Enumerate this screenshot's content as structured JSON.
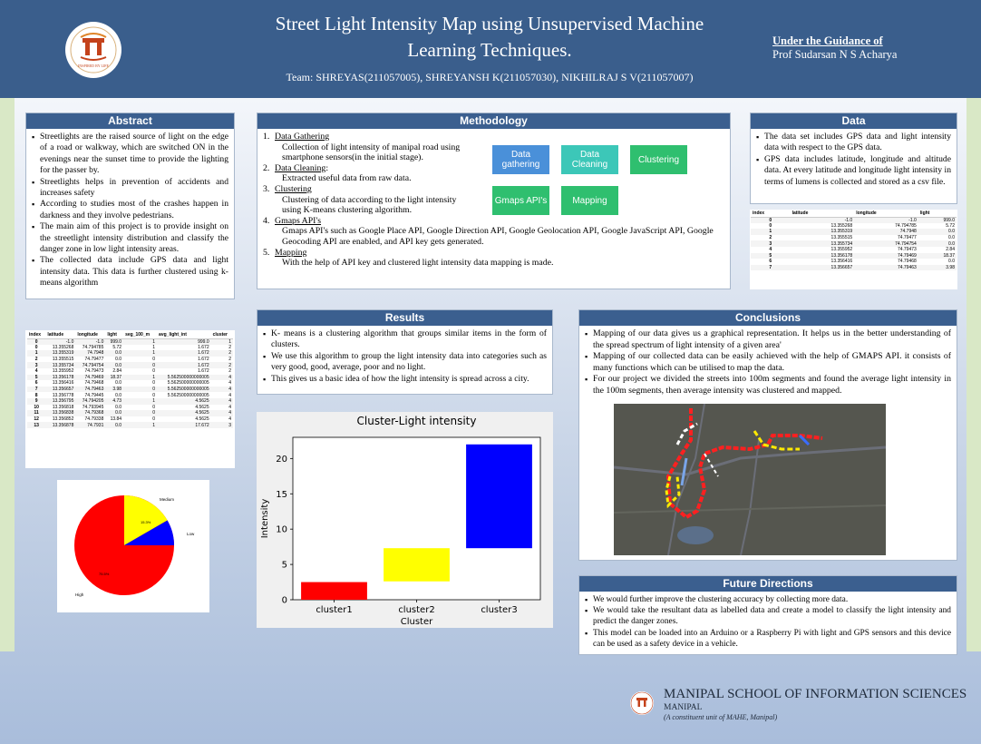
{
  "header": {
    "title_line1": "Street Light Intensity Map using Unsupervised Machine",
    "title_line2": "Learning Techniques.",
    "team": "Team: SHREYAS(211057005), SHREYANSH  K(211057030), NIKHILRAJ S V(211057007)",
    "guidance_label": "Under the Guidance of",
    "guidance_name": "Prof Sudarsan N S Acharya",
    "logo_text": "INSPIRED BY LIFE"
  },
  "abstract": {
    "heading": "Abstract",
    "items": [
      "Streetlights are the raised source of light on the edge of a road or walkway, which are switched ON in the evenings near the sunset time to provide the lighting for the passer by.",
      "Streetlights helps in prevention of accidents and increases safety",
      "According to studies most of the crashes happen in darkness and they involve pedestrians.",
      "The main aim of this project is to provide insight on the streetlight intensity distribution and classify the danger zone in low light intensity areas.",
      "The collected data include GPS data and light intensity data. This data is further clustered using k-means algorithm"
    ]
  },
  "methodology": {
    "heading": "Methodology",
    "steps": [
      {
        "num": "1.",
        "title": "Data Gathering",
        "text": "Collection of light intensity of manipal road using smartphone sensors(in the initial stage)."
      },
      {
        "num": "2.",
        "title": "Data Cleaning",
        "suffix": ":",
        "text": "Extracted useful data from raw data."
      },
      {
        "num": "3.",
        "title": "Clustering",
        "text": "Clustering of data according to the light intensity using K-means clustering algorithm."
      },
      {
        "num": "4.",
        "title": "Gmaps API's",
        "text": "Gmaps API's such as Google Place API, Google Direction API, Google Geolocation API, Google JavaScript API, Google Geocoding API are enabled, and API key gets generated."
      },
      {
        "num": "5.",
        "title": "Mapping",
        "text": "With the help of API key and clustered light intensity data mapping is made."
      }
    ],
    "flow": {
      "gathering": "Data gathering",
      "cleaning": "Data Cleaning",
      "clustering": "Clustering",
      "gmaps": "Gmaps API's",
      "mapping": "Mapping"
    }
  },
  "data": {
    "heading": "Data",
    "items": [
      "The data set includes GPS data and light intensity data with respect to the GPS data.",
      "GPS data includes latitude, longitude and altitude data. At every latitude and longitude light intensity in terms of lumens is collected and stored as a csv file."
    ],
    "table": {
      "headers": [
        "index",
        "latitude",
        "longitude",
        "light"
      ],
      "rows": [
        [
          "0",
          "-1.0",
          "-1.0",
          "999.0"
        ],
        [
          "0",
          "13.355268",
          "74.794785",
          "5.72"
        ],
        [
          "1",
          "13.355319",
          "74.7948",
          "0.0"
        ],
        [
          "2",
          "13.355515",
          "74.79477",
          "0.0"
        ],
        [
          "3",
          "13.355734",
          "74.794754",
          "0.0"
        ],
        [
          "4",
          "13.355952",
          "74.79473",
          "2.84"
        ],
        [
          "5",
          "13.356178",
          "74.79469",
          "18.37"
        ],
        [
          "6",
          "13.356416",
          "74.79468",
          "0.0"
        ],
        [
          "7",
          "13.356657",
          "74.79463",
          "3.98"
        ]
      ]
    }
  },
  "cluster_table": {
    "headers": [
      "index",
      "latitude",
      "longitude",
      "light",
      "seg_100_m",
      "avg_light_int",
      "cluster"
    ],
    "rows": [
      [
        "0",
        "-1.0",
        "-1.0",
        "999.0",
        "1",
        "999.0",
        "1"
      ],
      [
        "0",
        "13.355268",
        "74.794785",
        "5.72",
        "1",
        "1.672",
        "2"
      ],
      [
        "1",
        "13.355319",
        "74.7948",
        "0.0",
        "1",
        "1.672",
        "2"
      ],
      [
        "2",
        "13.355515",
        "74.79477",
        "0.0",
        "0",
        "1.672",
        "2"
      ],
      [
        "3",
        "13.355734",
        "74.794754",
        "0.0",
        "0",
        "1.672",
        "2"
      ],
      [
        "4",
        "13.355952",
        "74.79473",
        "2.84",
        "0",
        "1.672",
        "2"
      ],
      [
        "5",
        "13.356178",
        "74.79469",
        "18.37",
        "1",
        "5.562500000000005",
        "4"
      ],
      [
        "6",
        "13.356416",
        "74.79468",
        "0.0",
        "0",
        "5.562500000000005",
        "4"
      ],
      [
        "7",
        "13.356657",
        "74.79463",
        "3.98",
        "0",
        "5.562500000000005",
        "4"
      ],
      [
        "8",
        "13.356778",
        "74.79445",
        "0.0",
        "0",
        "5.562500000000005",
        "4"
      ],
      [
        "9",
        "13.356795",
        "74.794205",
        "4.73",
        "1",
        "4.5625",
        "4"
      ],
      [
        "10",
        "13.356818",
        "74.793945",
        "0.0",
        "0",
        "4.5625",
        "4"
      ],
      [
        "11",
        "13.356838",
        "74.79368",
        "0.0",
        "0",
        "4.5625",
        "4"
      ],
      [
        "12",
        "13.356852",
        "74.79338",
        "13.84",
        "0",
        "4.5625",
        "4"
      ],
      [
        "13",
        "13.356878",
        "74.7931",
        "0.0",
        "1",
        "17.672",
        "3"
      ]
    ]
  },
  "pie": {
    "labels": {
      "medium": "Medium",
      "low": "Low",
      "high": "High"
    },
    "medium_pct": "15.3%",
    "high_pct": "75.5%"
  },
  "results": {
    "heading": "Results",
    "items": [
      "K- means is a clustering algorithm that groups similar items in the form of clusters.",
      "We use this algorithm to group the light intensity data into categories such as very good, good, average, poor and no light.",
      "This gives us a basic idea of how the light intensity is spread across a city."
    ]
  },
  "chart_data": {
    "type": "bar",
    "title": "Cluster-Light intensity",
    "xlabel": "Cluster",
    "ylabel": "Intensity",
    "categories": [
      "cluster1",
      "cluster2",
      "cluster3"
    ],
    "bars": [
      {
        "bottom": 0,
        "top": 2.5,
        "color": "#ff0000"
      },
      {
        "bottom": 2.6,
        "top": 7.3,
        "color": "#ffff00"
      },
      {
        "bottom": 7.3,
        "top": 22,
        "color": "#0000ff"
      }
    ],
    "ylim": [
      0,
      23
    ],
    "yticks": [
      0,
      5,
      10,
      15,
      20
    ]
  },
  "conclusions": {
    "heading": "Conclusions",
    "items": [
      "Mapping of our data gives us a graphical representation. It helps us in the better understanding of the spread spectrum of light intensity of a given area'",
      "Mapping of our collected data can be easily achieved with the help of GMAPS API. it consists of many functions which can be utilised to map the data.",
      "For our project we divided the streets into 100m segments and found the average light intensity in the 100m segments, then average intensity was clustered and mapped."
    ]
  },
  "future": {
    "heading": "Future Directions",
    "items": [
      "We would further improve the clustering accuracy by collecting more data.",
      "We would take the resultant data as labelled data and create a model to classify the light intensity and predict the danger zones.",
      "This model can be loaded into an Arduino or a Raspberry Pi with light and GPS sensors and this device can be used as a safety device in a vehicle."
    ]
  },
  "footer": {
    "school": "MANIPAL SCHOOL OF INFORMATION SCIENCES",
    "place": "MANIPAL",
    "unit": "(A constituent unit of MAHE, Manipal)"
  },
  "colors": {
    "header": "#3a5e8c",
    "panel_heading": "#3b5f8f",
    "flow_blue": "#4a90d9",
    "flow_teal": "#3cc7b8",
    "flow_green": "#2fbf6f"
  }
}
